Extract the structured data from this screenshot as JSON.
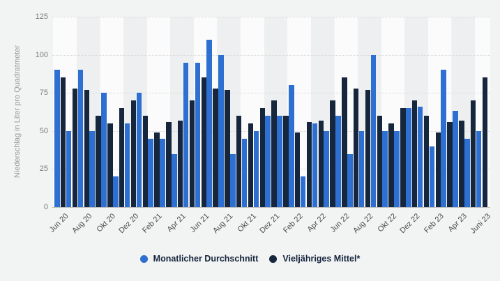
{
  "chart_data": {
    "type": "bar",
    "title": "",
    "xlabel": "",
    "ylabel": "Niederschlag in Liter pro Quadratmeter",
    "ylim": [
      0,
      125
    ],
    "yticks": [
      0,
      25,
      50,
      75,
      100,
      125
    ],
    "grid": "horizontal-dotted",
    "legend_position": "bottom-center",
    "background_bands": "alternating vertical bands every two months",
    "categories": [
      "Jun 20",
      "Jul 20",
      "Aug 20",
      "Sep 20",
      "Okt 20",
      "Nov 20",
      "Dez 20",
      "Jan 21",
      "Feb 21",
      "Mär 21",
      "Apr 21",
      "Mai 21",
      "Jun 21",
      "Jul 21",
      "Aug 21",
      "Sep 21",
      "Okt 21",
      "Nov 21",
      "Dez 21",
      "Jan 22",
      "Feb 22",
      "Mär 22",
      "Apr 22",
      "Mai 22",
      "Jun 22",
      "Jul 22",
      "Aug 22",
      "Sep 22",
      "Okt 22",
      "Nov 22",
      "Dez 22",
      "Jan 23",
      "Feb 23",
      "Mär 23",
      "Apr 23",
      "Mai 23",
      "Juni 23"
    ],
    "visible_x_tick_labels": [
      "Jun 20",
      "Aug 20",
      "Okt 20",
      "Dez 20",
      "Feb 21",
      "Apr 21",
      "Jun 21",
      "Aug 21",
      "Okt 21",
      "Dez 21",
      "Feb 22",
      "Apr 22",
      "Jun 22",
      "Aug 22",
      "Okt 22",
      "Dez 22",
      "Feb 23",
      "Apr 23",
      "Juni 23"
    ],
    "series": [
      {
        "name": "Monatlicher Durchschnitt",
        "color": "#2e70d1",
        "values": [
          90,
          50,
          90,
          50,
          75,
          20,
          55,
          75,
          45,
          45,
          35,
          95,
          95,
          110,
          100,
          35,
          45,
          50,
          60,
          60,
          80,
          20,
          55,
          50,
          60,
          35,
          50,
          100,
          50,
          50,
          65,
          66,
          40,
          90,
          63,
          45,
          50
        ]
      },
      {
        "name": "Vieljähriges Mittel*",
        "color": "#16263d",
        "values": [
          85,
          78,
          77,
          60,
          55,
          65,
          70,
          60,
          49,
          56,
          57,
          70,
          85,
          78,
          77,
          60,
          55,
          65,
          70,
          60,
          49,
          56,
          57,
          70,
          85,
          78,
          77,
          60,
          55,
          65,
          70,
          60,
          49,
          56,
          57,
          70,
          85
        ]
      }
    ]
  },
  "colors": {
    "page_bg": "#f2f3f3",
    "band_light": "#fbfbfb",
    "band_dark": "#eeeff0",
    "gridline": "#d8d8d8",
    "axis_line": "#bdbdbd",
    "y_tick_text": "#7d7d7d",
    "x_tick_text": "#4c4c4c",
    "y_axis_label_text": "#999999",
    "legend_text": "#16263d"
  }
}
